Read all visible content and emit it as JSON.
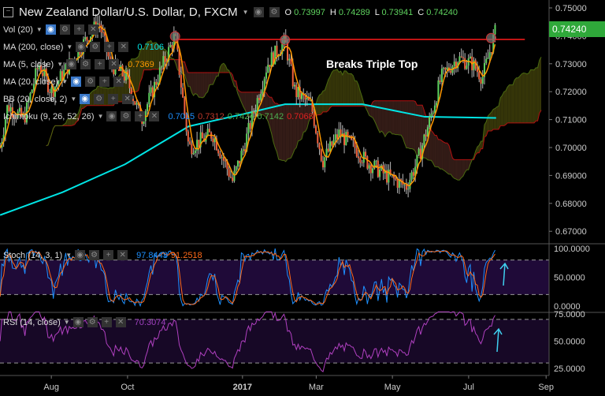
{
  "header": {
    "symbol_title": "New Zealand Dollar/U.S. Dollar, D, FXCM",
    "ohlc": [
      {
        "label": "O",
        "value": "0.73997"
      },
      {
        "label": "H",
        "value": "0.74289"
      },
      {
        "label": "L",
        "value": "0.73941"
      },
      {
        "label": "C",
        "value": "0.74240"
      }
    ]
  },
  "indicators": [
    {
      "label": "Vol (20)",
      "values": []
    },
    {
      "label": "MA (200, close)",
      "values": [
        {
          "v": "0.7106",
          "color": "#00e5e5"
        }
      ]
    },
    {
      "label": "MA (5, close)",
      "values": [
        {
          "v": "0.7369",
          "color": "#ff9900"
        }
      ]
    },
    {
      "label": "MA (20, close)",
      "values": []
    },
    {
      "label": "BB (20, close, 2)",
      "values": []
    },
    {
      "label": "Ichimoku (9, 26, 52, 26)",
      "values": [
        {
          "v": "0.7015",
          "color": "#1e90ff"
        },
        {
          "v": "0.7312",
          "color": "#c0392b"
        },
        {
          "v": "0.7424",
          "color": "#4caf50"
        },
        {
          "v": "0.7142",
          "color": "#4caf50"
        },
        {
          "v": "0.7068",
          "color": "#e02020"
        }
      ]
    }
  ],
  "stoch": {
    "label": "Stoch (14, 3, 1)",
    "k": "97.8443",
    "d": "91.2518"
  },
  "rsi": {
    "label": "RSI (14, close)",
    "value": "70.3074"
  },
  "current_price": "0.74240",
  "annotation": "Breaks Triple Top",
  "colors": {
    "up": "#5fd35f",
    "down": "#f0603c",
    "ma5": "#ff9900",
    "ma200": "#00e5e5",
    "resistance": "#ff1a1a",
    "stoch_k": "#1e90ff",
    "stoch_d": "#ff6a1a",
    "rsi": "#b040c0",
    "arrow": "#3fd0f0"
  },
  "chart_data": {
    "type": "candlestick",
    "title": "New Zealand Dollar/U.S. Dollar, D, FXCM",
    "x_unit": "days since 2016-07-01",
    "xticks": [
      {
        "label": "Aug",
        "day": 31
      },
      {
        "label": "Oct",
        "day": 92
      },
      {
        "label": "2017",
        "day": 184
      },
      {
        "label": "Mar",
        "day": 243
      },
      {
        "label": "May",
        "day": 304
      },
      {
        "label": "Jul",
        "day": 365
      },
      {
        "label": "Sep",
        "day": 427
      }
    ],
    "price_ticks": [
      "0.75000",
      "0.74000",
      "0.73000",
      "0.72000",
      "0.71000",
      "0.70000",
      "0.69000",
      "0.68000",
      "0.67000"
    ],
    "price_range": [
      0.6665,
      0.7528
    ],
    "close_anchors": [
      [
        -10,
        0.7
      ],
      [
        -4,
        0.715
      ],
      [
        9,
        0.71
      ],
      [
        21,
        0.73
      ],
      [
        31,
        0.72
      ],
      [
        53,
        0.735
      ],
      [
        69,
        0.745
      ],
      [
        78,
        0.73
      ],
      [
        91,
        0.725
      ],
      [
        103,
        0.71
      ],
      [
        116,
        0.725
      ],
      [
        130,
        0.74
      ],
      [
        141,
        0.7
      ],
      [
        160,
        0.705
      ],
      [
        176,
        0.688
      ],
      [
        185,
        0.7
      ],
      [
        204,
        0.73
      ],
      [
        218,
        0.738
      ],
      [
        226,
        0.72
      ],
      [
        239,
        0.715
      ],
      [
        248,
        0.695
      ],
      [
        261,
        0.705
      ],
      [
        274,
        0.7
      ],
      [
        283,
        0.695
      ],
      [
        299,
        0.69
      ],
      [
        315,
        0.686
      ],
      [
        324,
        0.695
      ],
      [
        334,
        0.71
      ],
      [
        343,
        0.725
      ],
      [
        356,
        0.732
      ],
      [
        368,
        0.73
      ],
      [
        376,
        0.725
      ],
      [
        387,
        0.7424
      ]
    ],
    "ma200_anchors": [
      [
        -10,
        0.6758
      ],
      [
        40,
        0.684
      ],
      [
        90,
        0.694
      ],
      [
        141,
        0.7076
      ],
      [
        185,
        0.712
      ],
      [
        218,
        0.7155
      ],
      [
        280,
        0.7155
      ],
      [
        330,
        0.711
      ],
      [
        387,
        0.7106
      ]
    ],
    "resistance": {
      "price": 0.7387,
      "from_day": 130,
      "to_day": 410
    },
    "tops": [
      [
        130,
        0.7398
      ],
      [
        218,
        0.7385
      ],
      [
        383,
        0.7392
      ]
    ],
    "stoch_ticks": [
      "100.0000",
      "50.0000",
      "0.0000"
    ],
    "stoch_levels": [
      80,
      20
    ],
    "rsi_ticks": [
      "75.0000",
      "50.0000",
      "25.0000"
    ],
    "rsi_levels": [
      70,
      30
    ]
  }
}
